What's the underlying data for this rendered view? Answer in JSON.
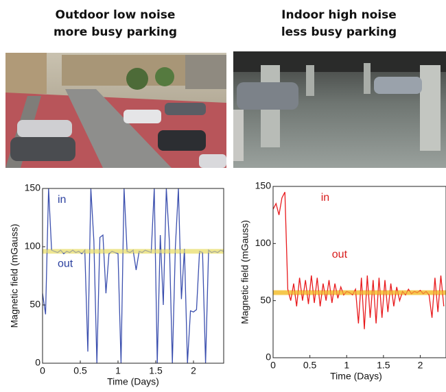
{
  "chart_data": [
    {
      "type": "line",
      "title": "Outdoor low noise more busy parking",
      "x_label": "Time (Days)",
      "y_label": "Magnetic field (mGauss)",
      "xlim": [
        0,
        2.4
      ],
      "xticks": [
        0,
        0.5,
        1,
        1.5,
        2
      ],
      "ylim": [
        0,
        150
      ],
      "yticks": [
        0,
        50,
        100,
        150
      ],
      "x": [
        0,
        0.04,
        0.08,
        0.12,
        0.16,
        0.2,
        0.24,
        0.28,
        0.32,
        0.36,
        0.4,
        0.44,
        0.48,
        0.52,
        0.56,
        0.6,
        0.64,
        0.68,
        0.72,
        0.76,
        0.8,
        0.84,
        0.88,
        0.92,
        0.96,
        1.0,
        1.04,
        1.08,
        1.12,
        1.16,
        1.2,
        1.24,
        1.28,
        1.32,
        1.36,
        1.4,
        1.44,
        1.48,
        1.52,
        1.56,
        1.6,
        1.64,
        1.68,
        1.72,
        1.76,
        1.8,
        1.84,
        1.88,
        1.92,
        1.96,
        2.0,
        2.04,
        2.08,
        2.12,
        2.16,
        2.2,
        2.24,
        2.28,
        2.32,
        2.36,
        2.4
      ],
      "series": [
        {
          "color": "#3b4fae",
          "values": [
            60,
            42,
            150,
            97,
            96,
            95,
            97,
            94,
            96,
            95,
            97,
            95,
            96,
            94,
            97,
            10,
            150,
            105,
            0,
            108,
            110,
            60,
            94,
            96,
            95,
            94,
            0,
            150,
            96,
            95,
            97,
            80,
            96,
            95,
            97,
            96,
            95,
            150,
            0,
            110,
            50,
            150,
            105,
            0,
            100,
            150,
            55,
            98,
            0,
            45,
            44,
            46,
            96,
            95,
            0,
            97,
            95,
            96,
            95,
            97,
            96
          ]
        }
      ],
      "reference_line": {
        "value": 96,
        "color": "#eee58a"
      },
      "annotations": [
        {
          "text": "in",
          "x": 0.2,
          "y": 140,
          "color": "#2a3f9e"
        },
        {
          "text": "out",
          "x": 0.2,
          "y": 85,
          "color": "#2a3f9e"
        }
      ]
    },
    {
      "type": "line",
      "title": "Indoor high noise less busy parking",
      "x_label": "Time (Days)",
      "y_label": "Magnetic field (mGauss)",
      "xlim": [
        0,
        2.35
      ],
      "xticks": [
        0,
        0.5,
        1,
        1.5,
        2
      ],
      "ylim": [
        0,
        150
      ],
      "yticks": [
        0,
        50,
        100,
        150
      ],
      "x": [
        0,
        0.04,
        0.08,
        0.12,
        0.16,
        0.2,
        0.24,
        0.28,
        0.32,
        0.36,
        0.4,
        0.44,
        0.48,
        0.52,
        0.56,
        0.6,
        0.64,
        0.68,
        0.72,
        0.76,
        0.8,
        0.84,
        0.88,
        0.92,
        0.96,
        1.0,
        1.04,
        1.08,
        1.12,
        1.16,
        1.2,
        1.24,
        1.28,
        1.32,
        1.36,
        1.4,
        1.44,
        1.48,
        1.52,
        1.56,
        1.6,
        1.64,
        1.68,
        1.72,
        1.76,
        1.8,
        1.84,
        1.88,
        1.92,
        1.96,
        2.0,
        2.04,
        2.08,
        2.12,
        2.16,
        2.2,
        2.24,
        2.28,
        2.32
      ],
      "series": [
        {
          "color": "#e8191c",
          "values": [
            130,
            135,
            125,
            140,
            145,
            60,
            50,
            65,
            45,
            70,
            50,
            68,
            47,
            72,
            48,
            70,
            45,
            65,
            50,
            68,
            48,
            65,
            52,
            62,
            55,
            58,
            57,
            55,
            60,
            30,
            70,
            25,
            72,
            35,
            68,
            30,
            70,
            35,
            68,
            40,
            65,
            45,
            62,
            50,
            58,
            55,
            60,
            56,
            58,
            57,
            59,
            56,
            58,
            55,
            35,
            70,
            40,
            72,
            45
          ]
        }
      ],
      "reference_line": {
        "value": 57,
        "color": "#f5c542"
      },
      "annotations": [
        {
          "text": "in",
          "x": 0.65,
          "y": 140,
          "color": "#d81c1c"
        },
        {
          "text": "out",
          "x": 0.8,
          "y": 90,
          "color": "#d81c1c"
        }
      ]
    }
  ]
}
